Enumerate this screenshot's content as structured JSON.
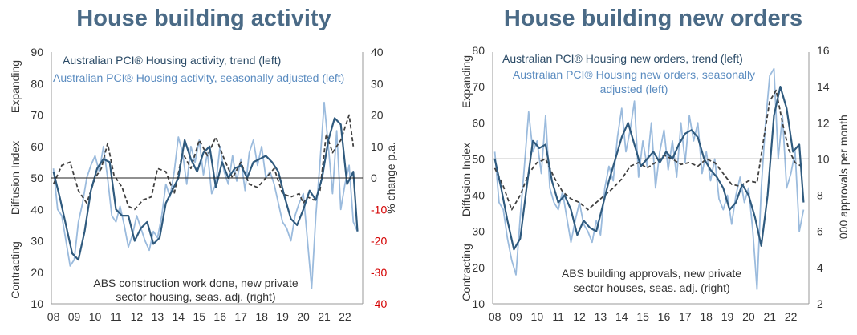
{
  "chart_data": [
    {
      "type": "line",
      "title": "House building activity",
      "left_axis": {
        "label_top": "Expanding",
        "label_mid": "Diffusion Index",
        "label_bottom": "Contracting",
        "ylim": [
          10,
          90
        ],
        "ticks": [
          "10",
          "20",
          "30",
          "40",
          "50",
          "60",
          "70",
          "80",
          "90"
        ]
      },
      "right_axis": {
        "label": "% change p.a.",
        "ylim": [
          -40,
          40
        ],
        "ticks": [
          "-40",
          "-30",
          "-20",
          "-10",
          "0",
          "10",
          "20",
          "30",
          "40"
        ]
      },
      "x_ticks": [
        "08",
        "09",
        "10",
        "11",
        "12",
        "13",
        "14",
        "15",
        "16",
        "17",
        "18",
        "19",
        "20",
        "21",
        "22"
      ],
      "reference_line": 50,
      "legend_lines": [
        "Australian PCI® Housing activity, trend (left)",
        "Australian PCI® Housing activity, seasonally adjusted (left)"
      ],
      "note_lines": [
        "ABS construction work done, new private",
        "sector housing, seas. adj. (right)"
      ],
      "series": [
        {
          "name": "Australian PCI® Housing activity, trend (left)",
          "axis": "left",
          "color": "#2f5a7e",
          "x": [
            2008.0,
            2008.3,
            2008.6,
            2008.9,
            2009.2,
            2009.5,
            2009.8,
            2010.1,
            2010.4,
            2010.7,
            2011.0,
            2011.3,
            2011.6,
            2011.9,
            2012.2,
            2012.5,
            2012.8,
            2013.1,
            2013.4,
            2013.7,
            2014.0,
            2014.3,
            2014.6,
            2014.9,
            2015.2,
            2015.5,
            2015.8,
            2016.1,
            2016.4,
            2016.7,
            2017.0,
            2017.3,
            2017.6,
            2017.9,
            2018.2,
            2018.5,
            2018.8,
            2019.1,
            2019.4,
            2019.7,
            2020.0,
            2020.3,
            2020.6,
            2020.9,
            2021.2,
            2021.5,
            2021.8,
            2022.1,
            2022.4,
            2022.6
          ],
          "y": [
            52,
            44,
            35,
            26,
            24,
            33,
            46,
            53,
            56,
            55,
            40,
            38,
            38,
            30,
            34,
            36,
            29,
            31,
            42,
            46,
            50,
            62,
            56,
            52,
            58,
            60,
            47,
            55,
            50,
            53,
            54,
            50,
            55,
            56,
            57,
            55,
            52,
            44,
            37,
            35,
            40,
            46,
            43,
            50,
            62,
            69,
            67,
            48,
            52,
            33
          ]
        },
        {
          "name": "Australian PCI® Housing activity, seasonally adjusted (left)",
          "axis": "left",
          "color": "#9bbbdd",
          "x": [
            2008.0,
            2008.2,
            2008.4,
            2008.6,
            2008.8,
            2009.0,
            2009.2,
            2009.4,
            2009.6,
            2009.8,
            2010.0,
            2010.2,
            2010.4,
            2010.6,
            2010.8,
            2011.0,
            2011.2,
            2011.4,
            2011.6,
            2011.8,
            2012.0,
            2012.2,
            2012.4,
            2012.6,
            2012.8,
            2013.0,
            2013.2,
            2013.4,
            2013.6,
            2013.8,
            2014.0,
            2014.2,
            2014.4,
            2014.6,
            2014.8,
            2015.0,
            2015.2,
            2015.4,
            2015.6,
            2015.8,
            2016.0,
            2016.2,
            2016.4,
            2016.6,
            2016.8,
            2017.0,
            2017.2,
            2017.4,
            2017.6,
            2017.8,
            2018.0,
            2018.2,
            2018.4,
            2018.6,
            2018.8,
            2019.0,
            2019.2,
            2019.4,
            2019.6,
            2019.8,
            2020.0,
            2020.2,
            2020.4,
            2020.6,
            2020.8,
            2021.0,
            2021.2,
            2021.4,
            2021.6,
            2021.8,
            2022.0,
            2022.2,
            2022.4,
            2022.6
          ],
          "y": [
            53,
            40,
            38,
            30,
            22,
            24,
            36,
            42,
            50,
            54,
            57,
            52,
            60,
            50,
            38,
            36,
            41,
            35,
            28,
            32,
            38,
            34,
            30,
            27,
            33,
            31,
            38,
            48,
            44,
            52,
            63,
            58,
            48,
            60,
            55,
            62,
            51,
            58,
            45,
            48,
            60,
            52,
            48,
            57,
            49,
            56,
            46,
            58,
            62,
            54,
            60,
            50,
            52,
            48,
            42,
            36,
            34,
            30,
            38,
            42,
            45,
            30,
            15,
            38,
            55,
            74,
            60,
            45,
            65,
            40,
            48,
            54,
            36,
            33
          ]
        },
        {
          "name": "ABS construction work done, new private sector housing, seas. adj. (right)",
          "axis": "right",
          "color": "#404040",
          "dashed": true,
          "x": [
            2008.0,
            2008.4,
            2008.8,
            2009.2,
            2009.6,
            2010.0,
            2010.3,
            2010.6,
            2010.9,
            2011.3,
            2011.6,
            2011.9,
            2012.3,
            2012.7,
            2013.0,
            2013.4,
            2013.8,
            2014.2,
            2014.6,
            2015.0,
            2015.4,
            2015.8,
            2016.2,
            2016.6,
            2017.0,
            2017.4,
            2017.8,
            2018.2,
            2018.6,
            2019.0,
            2019.4,
            2019.8,
            2020.0,
            2020.2,
            2020.5,
            2020.8,
            2021.1,
            2021.4,
            2021.8,
            2022.2,
            2022.4
          ],
          "y": [
            -2,
            4,
            5,
            -4,
            -8,
            0,
            3,
            11,
            1,
            -3,
            -9,
            -10,
            -7,
            -6,
            3,
            2,
            -5,
            8,
            3,
            12,
            7,
            13,
            6,
            0,
            5,
            -2,
            -3,
            0,
            3,
            -5,
            -6,
            -5,
            -8,
            -6,
            -7,
            -4,
            14,
            8,
            12,
            20,
            10
          ]
        }
      ]
    },
    {
      "type": "line",
      "title": "House building new orders",
      "left_axis": {
        "label_top": "Expanding",
        "label_mid": "Diffusion Index",
        "label_bottom": "Contracting",
        "ylim": [
          10,
          80
        ],
        "ticks": [
          "10",
          "20",
          "30",
          "40",
          "50",
          "60",
          "70",
          "80"
        ]
      },
      "right_axis": {
        "label": "'000 approvals per month",
        "ylim": [
          2,
          16
        ],
        "ticks": [
          "2",
          "4",
          "6",
          "8",
          "10",
          "12",
          "14",
          "16"
        ]
      },
      "x_ticks": [
        "08",
        "09",
        "10",
        "11",
        "12",
        "13",
        "14",
        "15",
        "16",
        "17",
        "18",
        "19",
        "20",
        "21",
        "22"
      ],
      "reference_line": 50,
      "legend_lines": [
        "Australian PCI® Housing new orders, trend (left)",
        "Australian PCI® Housing new orders, seasonally",
        "adjusted (left)"
      ],
      "note_lines": [
        "ABS building approvals, new private",
        "sector houses, seas. adj. (right)"
      ],
      "series": [
        {
          "name": "Australian PCI® Housing new orders, trend (left)",
          "axis": "left",
          "color": "#2f5a7e",
          "x": [
            2008.0,
            2008.3,
            2008.6,
            2008.9,
            2009.2,
            2009.5,
            2009.8,
            2010.1,
            2010.4,
            2010.7,
            2011.0,
            2011.3,
            2011.6,
            2011.9,
            2012.2,
            2012.5,
            2012.8,
            2013.1,
            2013.4,
            2013.7,
            2014.0,
            2014.3,
            2014.6,
            2014.9,
            2015.2,
            2015.5,
            2015.8,
            2016.1,
            2016.4,
            2016.7,
            2017.0,
            2017.3,
            2017.6,
            2017.9,
            2018.2,
            2018.5,
            2018.8,
            2019.1,
            2019.4,
            2019.7,
            2020.0,
            2020.3,
            2020.6,
            2020.9,
            2021.2,
            2021.5,
            2021.8,
            2022.1,
            2022.4,
            2022.6
          ],
          "y": [
            50,
            42,
            33,
            25,
            28,
            42,
            55,
            53,
            54,
            44,
            38,
            40,
            36,
            29,
            33,
            31,
            30,
            37,
            44,
            50,
            56,
            60,
            54,
            48,
            50,
            52,
            49,
            52,
            50,
            54,
            57,
            58,
            56,
            50,
            47,
            45,
            42,
            36,
            38,
            43,
            40,
            34,
            26,
            40,
            62,
            70,
            64,
            52,
            54,
            38
          ]
        },
        {
          "name": "Australian PCI® Housing new orders, seasonally adjusted (left)",
          "axis": "left",
          "color": "#9bbbdd",
          "x": [
            2008.0,
            2008.2,
            2008.4,
            2008.6,
            2008.8,
            2009.0,
            2009.2,
            2009.4,
            2009.6,
            2009.8,
            2010.0,
            2010.2,
            2010.4,
            2010.6,
            2010.8,
            2011.0,
            2011.2,
            2011.4,
            2011.6,
            2011.8,
            2012.0,
            2012.2,
            2012.4,
            2012.6,
            2012.8,
            2013.0,
            2013.2,
            2013.4,
            2013.6,
            2013.8,
            2014.0,
            2014.2,
            2014.4,
            2014.6,
            2014.8,
            2015.0,
            2015.2,
            2015.4,
            2015.6,
            2015.8,
            2016.0,
            2016.2,
            2016.4,
            2016.6,
            2016.8,
            2017.0,
            2017.2,
            2017.4,
            2017.6,
            2017.8,
            2018.0,
            2018.2,
            2018.4,
            2018.6,
            2018.8,
            2019.0,
            2019.2,
            2019.4,
            2019.6,
            2019.8,
            2020.0,
            2020.2,
            2020.4,
            2020.6,
            2020.8,
            2021.0,
            2021.2,
            2021.4,
            2021.6,
            2021.8,
            2022.0,
            2022.2,
            2022.4,
            2022.6
          ],
          "y": [
            52,
            38,
            36,
            28,
            22,
            18,
            34,
            48,
            63,
            52,
            55,
            46,
            62,
            42,
            38,
            36,
            41,
            34,
            27,
            33,
            38,
            32,
            30,
            27,
            33,
            29,
            42,
            48,
            44,
            56,
            64,
            52,
            58,
            66,
            45,
            55,
            48,
            60,
            42,
            52,
            58,
            47,
            55,
            45,
            60,
            49,
            62,
            55,
            60,
            46,
            52,
            44,
            50,
            39,
            36,
            40,
            32,
            40,
            45,
            38,
            42,
            30,
            14,
            42,
            60,
            73,
            75,
            50,
            62,
            42,
            46,
            52,
            30,
            36
          ]
        },
        {
          "name": "ABS building approvals, new private sector houses, seas. adj. (right)",
          "axis": "right",
          "color": "#404040",
          "dashed": true,
          "x": [
            2008.0,
            2008.4,
            2008.8,
            2009.2,
            2009.6,
            2010.0,
            2010.4,
            2010.8,
            2011.2,
            2011.6,
            2012.0,
            2012.4,
            2012.8,
            2013.2,
            2013.6,
            2014.0,
            2014.4,
            2014.8,
            2015.2,
            2015.6,
            2016.0,
            2016.4,
            2016.8,
            2017.2,
            2017.6,
            2018.0,
            2018.4,
            2018.8,
            2019.2,
            2019.6,
            2020.0,
            2020.4,
            2020.7,
            2021.0,
            2021.3,
            2021.6,
            2021.9,
            2022.2,
            2022.5
          ],
          "y": [
            9.5,
            8.5,
            7.2,
            8.0,
            9.2,
            9.8,
            10.0,
            9.0,
            8.2,
            7.8,
            7.6,
            7.2,
            7.6,
            8.0,
            8.4,
            8.9,
            9.6,
            9.8,
            9.5,
            9.8,
            10.2,
            10.0,
            9.7,
            9.8,
            9.6,
            10.0,
            9.8,
            9.2,
            8.6,
            8.5,
            8.8,
            8.7,
            11.0,
            13.2,
            13.8,
            12.0,
            10.5,
            9.8,
            9.6
          ]
        }
      ]
    }
  ]
}
